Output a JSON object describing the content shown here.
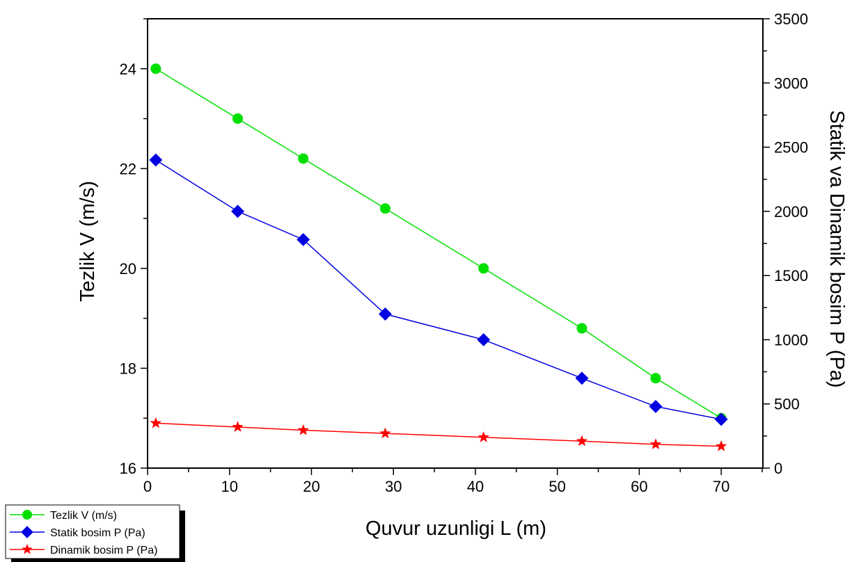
{
  "chart_data": {
    "type": "line",
    "xlabel": "Quvur uzunligi L (m)",
    "ylabel_left": "Tezlik V (m/s)",
    "ylabel_right": "Statik va Dinamik bosim P (Pa)",
    "xlim": [
      0,
      75
    ],
    "ylim_left": [
      16,
      25
    ],
    "ylim_right": [
      0,
      3500
    ],
    "x_ticks": [
      0,
      10,
      20,
      30,
      40,
      50,
      60,
      70
    ],
    "y_left_ticks": [
      16,
      18,
      20,
      22,
      24
    ],
    "y_right_ticks": [
      0,
      500,
      1000,
      1500,
      2000,
      2500,
      3000,
      3500
    ],
    "grid": false,
    "legend_position": "bottom-left",
    "x": [
      1,
      11,
      19,
      29,
      41,
      53,
      62,
      70
    ],
    "series": [
      {
        "name": "Tezlik V (m/s)",
        "axis": "left",
        "color": "#00e000",
        "marker": "circle",
        "values": [
          24.0,
          23.0,
          22.2,
          21.2,
          20.0,
          18.8,
          17.8,
          17.0
        ]
      },
      {
        "name": "Statik bosim P (Pa)",
        "axis": "right",
        "color": "#0000e0",
        "marker": "diamond",
        "values": [
          2400,
          2000,
          1780,
          1200,
          1000,
          700,
          480,
          380
        ]
      },
      {
        "name": "Dinamik bosim P (Pa)",
        "axis": "right",
        "color": "#ff0000",
        "marker": "star",
        "values": [
          350,
          320,
          295,
          270,
          240,
          210,
          185,
          170
        ]
      }
    ]
  }
}
